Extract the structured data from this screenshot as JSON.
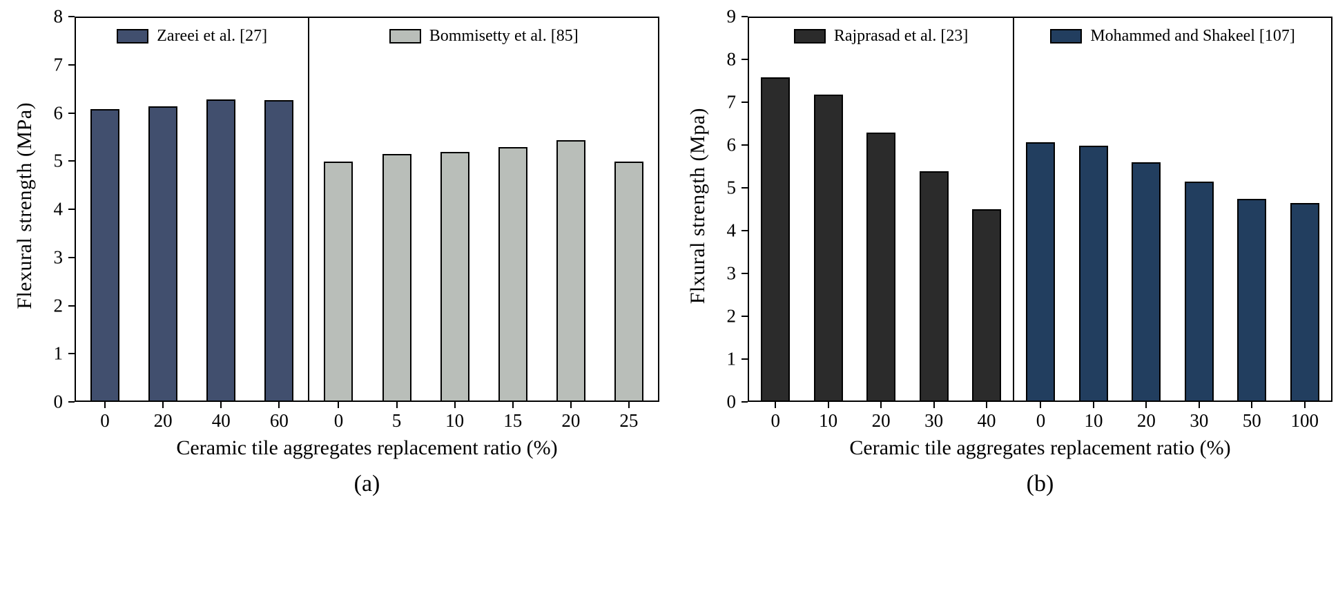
{
  "chart_data": [
    {
      "type": "bar",
      "sublabel": "(a)",
      "ylabel": "Flexural strength (MPa)",
      "xlabel": "Ceramic tile aggregates replacement ratio (%)",
      "ymax": 8,
      "yticks": [
        0,
        1,
        2,
        3,
        4,
        5,
        6,
        7,
        8
      ],
      "grid": false,
      "legend_position": "top-center-of-panel",
      "panels": [
        {
          "legend": "Zareei et al. [27]",
          "color": "#414f6e",
          "categories": [
            "0",
            "20",
            "40",
            "60"
          ],
          "values": [
            6.1,
            6.15,
            6.3,
            6.28
          ]
        },
        {
          "legend": "Bommisetty et al. [85]",
          "color": "#b9beb9",
          "categories": [
            "0",
            "5",
            "10",
            "15",
            "20",
            "25"
          ],
          "values": [
            5.0,
            5.15,
            5.2,
            5.3,
            5.45,
            5.0
          ]
        }
      ]
    },
    {
      "type": "bar",
      "sublabel": "(b)",
      "ylabel": "Flxural strength (Mpa)",
      "xlabel": "Ceramic tile aggregates replacement ratio (%)",
      "ymax": 9,
      "yticks": [
        0,
        1,
        2,
        3,
        4,
        5,
        6,
        7,
        8,
        9
      ],
      "grid": false,
      "legend_position": "top-center-of-panel",
      "panels": [
        {
          "legend": "Rajprasad et al. [23]",
          "color": "#2b2b2b",
          "categories": [
            "0",
            "10",
            "20",
            "30",
            "40"
          ],
          "values": [
            7.6,
            7.2,
            6.3,
            5.4,
            4.5
          ]
        },
        {
          "legend": "Mohammed and Shakeel [107]",
          "color": "#223e5f",
          "categories": [
            "0",
            "10",
            "20",
            "30",
            "50",
            "100"
          ],
          "values": [
            6.08,
            6.0,
            5.6,
            5.15,
            4.75,
            4.65
          ]
        }
      ]
    }
  ]
}
